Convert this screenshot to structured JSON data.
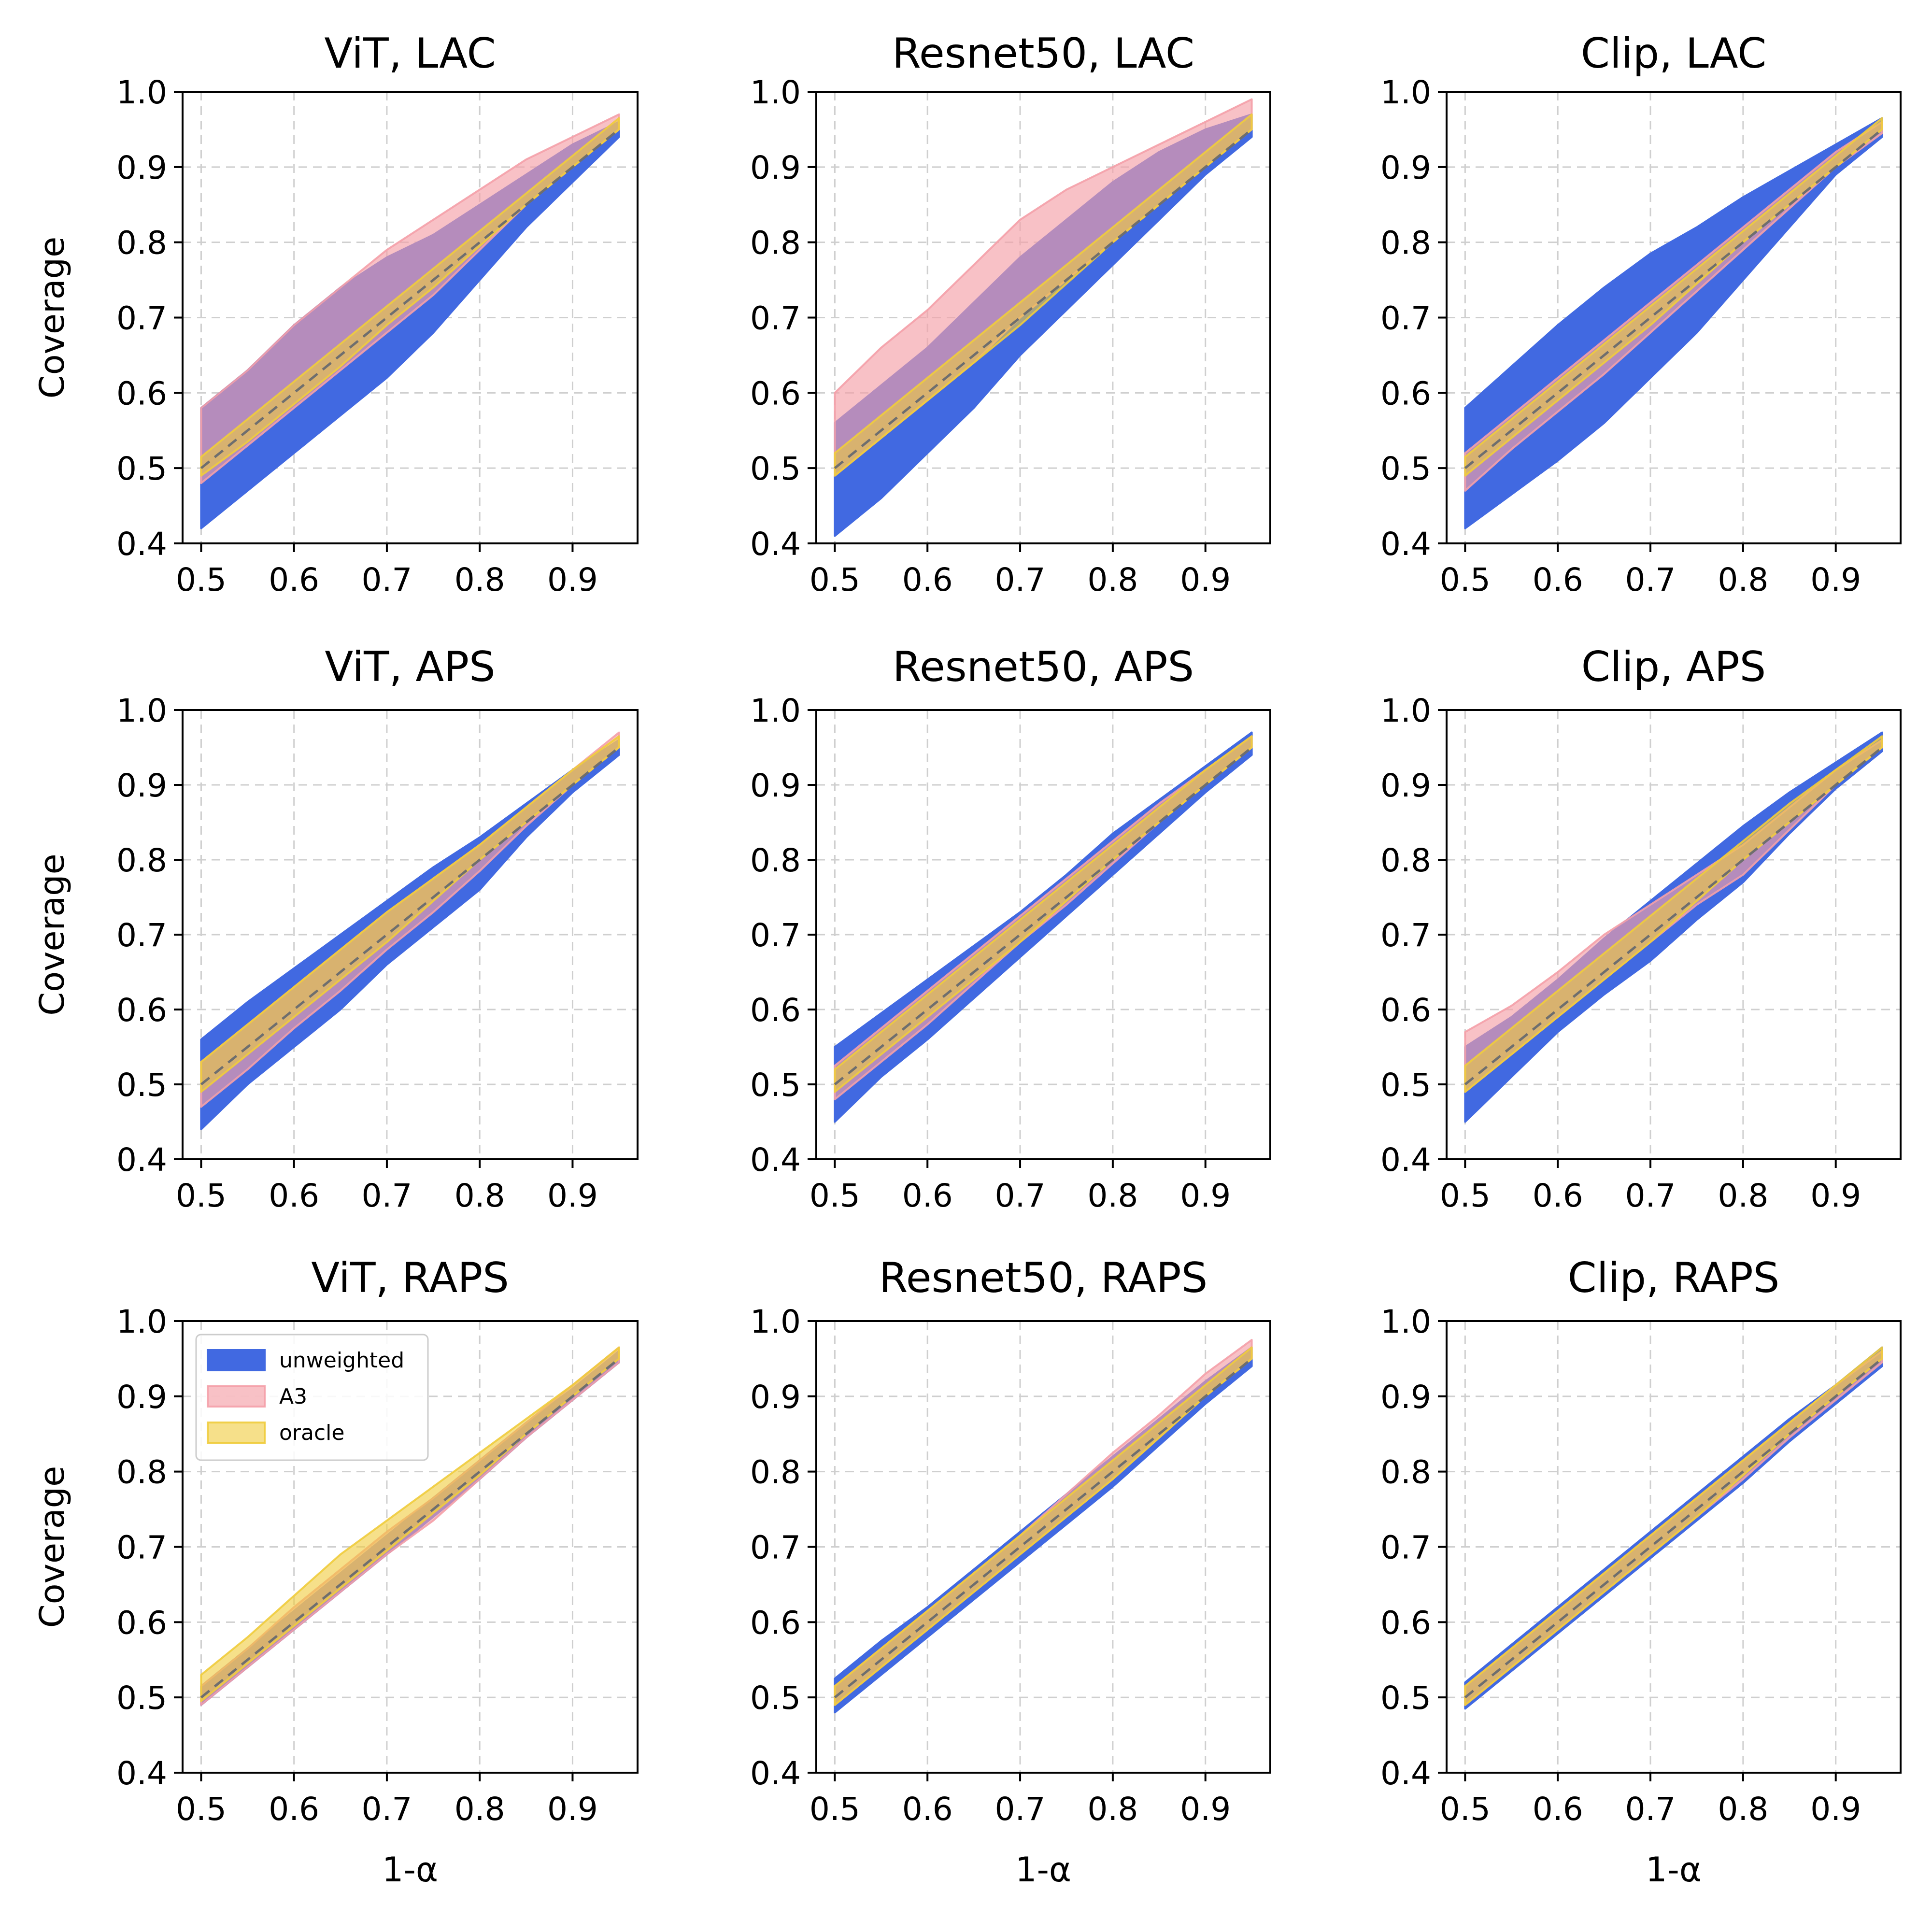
{
  "chart_data": {
    "type": "area",
    "rows": 3,
    "cols": 3,
    "xlabel": "1-α",
    "ylabel": "Coverage",
    "x": [
      0.5,
      0.55,
      0.6,
      0.65,
      0.7,
      0.75,
      0.8,
      0.85,
      0.9,
      0.95
    ],
    "xticks": [
      "0.5",
      "0.6",
      "0.7",
      "0.8",
      "0.9"
    ],
    "yticks": [
      "0.4",
      "0.5",
      "0.6",
      "0.7",
      "0.8",
      "0.9",
      "1.0"
    ],
    "xlim": [
      0.48,
      0.97
    ],
    "ylim": [
      0.4,
      1.0
    ],
    "grid": true,
    "colors": {
      "unweighted": "#4169e1",
      "A3": "#f4a0a8",
      "oracle": "#f0cc3c",
      "diagonal": "#6e6e6e"
    },
    "legend": {
      "location": "upper-left",
      "subplot": 6,
      "entries": [
        "unweighted",
        "A3",
        "oracle"
      ]
    },
    "subplots": [
      {
        "title": "ViT, LAC",
        "series": [
          {
            "name": "unweighted",
            "lower": [
              0.42,
              0.47,
              0.52,
              0.57,
              0.62,
              0.68,
              0.75,
              0.82,
              0.88,
              0.94
            ],
            "upper": [
              0.58,
              0.63,
              0.69,
              0.74,
              0.78,
              0.81,
              0.85,
              0.89,
              0.93,
              0.96
            ]
          },
          {
            "name": "A3",
            "lower": [
              0.48,
              0.53,
              0.58,
              0.63,
              0.68,
              0.73,
              0.79,
              0.85,
              0.9,
              0.95
            ],
            "upper": [
              0.58,
              0.63,
              0.69,
              0.74,
              0.79,
              0.83,
              0.87,
              0.91,
              0.94,
              0.97
            ]
          },
          {
            "name": "oracle",
            "lower": [
              0.49,
              0.535,
              0.585,
              0.635,
              0.69,
              0.74,
              0.795,
              0.85,
              0.9,
              0.95
            ],
            "upper": [
              0.515,
              0.565,
              0.615,
              0.665,
              0.715,
              0.765,
              0.815,
              0.865,
              0.915,
              0.965
            ]
          }
        ]
      },
      {
        "title": "Resnet50, LAC",
        "series": [
          {
            "name": "unweighted",
            "lower": [
              0.41,
              0.46,
              0.52,
              0.58,
              0.65,
              0.71,
              0.77,
              0.83,
              0.89,
              0.94
            ],
            "upper": [
              0.56,
              0.61,
              0.66,
              0.72,
              0.78,
              0.83,
              0.88,
              0.92,
              0.95,
              0.97
            ]
          },
          {
            "name": "A3",
            "lower": [
              0.49,
              0.54,
              0.59,
              0.64,
              0.7,
              0.75,
              0.8,
              0.85,
              0.9,
              0.95
            ],
            "upper": [
              0.6,
              0.66,
              0.71,
              0.77,
              0.83,
              0.87,
              0.9,
              0.93,
              0.96,
              0.99
            ]
          },
          {
            "name": "oracle",
            "lower": [
              0.49,
              0.54,
              0.59,
              0.64,
              0.69,
              0.745,
              0.8,
              0.85,
              0.9,
              0.95
            ],
            "upper": [
              0.52,
              0.57,
              0.62,
              0.67,
              0.72,
              0.77,
              0.82,
              0.87,
              0.92,
              0.97
            ]
          }
        ]
      },
      {
        "title": "Clip, LAC",
        "series": [
          {
            "name": "unweighted",
            "lower": [
              0.42,
              0.465,
              0.51,
              0.56,
              0.62,
              0.68,
              0.75,
              0.82,
              0.89,
              0.94
            ],
            "upper": [
              0.58,
              0.635,
              0.69,
              0.74,
              0.785,
              0.82,
              0.86,
              0.895,
              0.93,
              0.965
            ]
          },
          {
            "name": "A3",
            "lower": [
              0.47,
              0.525,
              0.575,
              0.625,
              0.68,
              0.735,
              0.79,
              0.845,
              0.9,
              0.945
            ],
            "upper": [
              0.52,
              0.57,
              0.62,
              0.67,
              0.72,
              0.77,
              0.82,
              0.87,
              0.92,
              0.96
            ]
          },
          {
            "name": "oracle",
            "lower": [
              0.49,
              0.54,
              0.59,
              0.64,
              0.69,
              0.745,
              0.8,
              0.85,
              0.9,
              0.95
            ],
            "upper": [
              0.515,
              0.565,
              0.615,
              0.665,
              0.715,
              0.765,
              0.815,
              0.865,
              0.915,
              0.965
            ]
          }
        ]
      },
      {
        "title": "ViT, APS",
        "series": [
          {
            "name": "unweighted",
            "lower": [
              0.44,
              0.5,
              0.55,
              0.6,
              0.66,
              0.71,
              0.76,
              0.83,
              0.89,
              0.94
            ],
            "upper": [
              0.56,
              0.61,
              0.655,
              0.7,
              0.745,
              0.79,
              0.83,
              0.875,
              0.92,
              0.96
            ]
          },
          {
            "name": "A3",
            "lower": [
              0.47,
              0.52,
              0.575,
              0.625,
              0.68,
              0.73,
              0.785,
              0.845,
              0.9,
              0.95
            ],
            "upper": [
              0.53,
              0.58,
              0.63,
              0.68,
              0.73,
              0.775,
              0.82,
              0.87,
              0.92,
              0.97
            ]
          },
          {
            "name": "oracle",
            "lower": [
              0.49,
              0.54,
              0.59,
              0.64,
              0.69,
              0.745,
              0.8,
              0.85,
              0.9,
              0.95
            ],
            "upper": [
              0.53,
              0.58,
              0.63,
              0.68,
              0.73,
              0.775,
              0.82,
              0.87,
              0.92,
              0.965
            ]
          }
        ]
      },
      {
        "title": "Resnet50, APS",
        "series": [
          {
            "name": "unweighted",
            "lower": [
              0.45,
              0.51,
              0.56,
              0.615,
              0.67,
              0.725,
              0.78,
              0.835,
              0.89,
              0.94
            ],
            "upper": [
              0.55,
              0.595,
              0.64,
              0.685,
              0.73,
              0.78,
              0.835,
              0.88,
              0.925,
              0.97
            ]
          },
          {
            "name": "A3",
            "lower": [
              0.48,
              0.53,
              0.58,
              0.635,
              0.69,
              0.74,
              0.795,
              0.85,
              0.9,
              0.95
            ],
            "upper": [
              0.525,
              0.575,
              0.625,
              0.675,
              0.725,
              0.775,
              0.825,
              0.875,
              0.92,
              0.965
            ]
          },
          {
            "name": "oracle",
            "lower": [
              0.49,
              0.54,
              0.59,
              0.64,
              0.69,
              0.745,
              0.8,
              0.85,
              0.9,
              0.95
            ],
            "upper": [
              0.52,
              0.57,
              0.62,
              0.67,
              0.72,
              0.77,
              0.82,
              0.87,
              0.92,
              0.965
            ]
          }
        ]
      },
      {
        "title": "Clip, APS",
        "series": [
          {
            "name": "unweighted",
            "lower": [
              0.45,
              0.51,
              0.57,
              0.62,
              0.665,
              0.72,
              0.77,
              0.835,
              0.895,
              0.945
            ],
            "upper": [
              0.55,
              0.59,
              0.64,
              0.695,
              0.745,
              0.795,
              0.845,
              0.89,
              0.93,
              0.97
            ]
          },
          {
            "name": "A3",
            "lower": [
              0.49,
              0.54,
              0.59,
              0.64,
              0.69,
              0.74,
              0.78,
              0.84,
              0.9,
              0.95
            ],
            "upper": [
              0.57,
              0.605,
              0.65,
              0.7,
              0.74,
              0.78,
              0.82,
              0.87,
              0.92,
              0.96
            ]
          },
          {
            "name": "oracle",
            "lower": [
              0.49,
              0.54,
              0.59,
              0.64,
              0.69,
              0.745,
              0.8,
              0.85,
              0.9,
              0.95
            ],
            "upper": [
              0.525,
              0.575,
              0.625,
              0.675,
              0.725,
              0.775,
              0.825,
              0.875,
              0.92,
              0.965
            ]
          }
        ]
      },
      {
        "title": "ViT, RAPS",
        "series": [
          {
            "name": "unweighted",
            "lower": [
              0.49,
              0.54,
              0.59,
              0.64,
              0.69,
              0.74,
              0.79,
              0.845,
              0.895,
              0.945
            ],
            "upper": [
              0.515,
              0.565,
              0.615,
              0.665,
              0.715,
              0.765,
              0.815,
              0.865,
              0.91,
              0.96
            ]
          },
          {
            "name": "A3",
            "lower": [
              0.49,
              0.54,
              0.59,
              0.64,
              0.69,
              0.735,
              0.79,
              0.845,
              0.895,
              0.945
            ],
            "upper": [
              0.515,
              0.565,
              0.62,
              0.67,
              0.72,
              0.765,
              0.815,
              0.865,
              0.915,
              0.965
            ]
          },
          {
            "name": "oracle",
            "lower": [
              0.495,
              0.545,
              0.595,
              0.645,
              0.695,
              0.745,
              0.795,
              0.85,
              0.9,
              0.95
            ],
            "upper": [
              0.53,
              0.58,
              0.635,
              0.69,
              0.735,
              0.78,
              0.825,
              0.87,
              0.915,
              0.965
            ]
          }
        ]
      },
      {
        "title": "Resnet50, RAPS",
        "series": [
          {
            "name": "unweighted",
            "lower": [
              0.48,
              0.53,
              0.58,
              0.63,
              0.68,
              0.73,
              0.78,
              0.835,
              0.89,
              0.94
            ],
            "upper": [
              0.525,
              0.575,
              0.62,
              0.67,
              0.72,
              0.77,
              0.82,
              0.87,
              0.92,
              0.965
            ]
          },
          {
            "name": "A3",
            "lower": [
              0.49,
              0.54,
              0.59,
              0.64,
              0.69,
              0.74,
              0.79,
              0.845,
              0.9,
              0.95
            ],
            "upper": [
              0.515,
              0.565,
              0.615,
              0.665,
              0.715,
              0.77,
              0.825,
              0.875,
              0.93,
              0.975
            ]
          },
          {
            "name": "oracle",
            "lower": [
              0.49,
              0.54,
              0.59,
              0.64,
              0.69,
              0.74,
              0.79,
              0.845,
              0.9,
              0.95
            ],
            "upper": [
              0.515,
              0.565,
              0.615,
              0.665,
              0.715,
              0.765,
              0.815,
              0.865,
              0.915,
              0.965
            ]
          }
        ]
      },
      {
        "title": "Clip, RAPS",
        "series": [
          {
            "name": "unweighted",
            "lower": [
              0.485,
              0.535,
              0.585,
              0.635,
              0.685,
              0.735,
              0.785,
              0.84,
              0.89,
              0.94
            ],
            "upper": [
              0.52,
              0.57,
              0.62,
              0.67,
              0.72,
              0.77,
              0.82,
              0.87,
              0.915,
              0.965
            ]
          },
          {
            "name": "A3",
            "lower": [
              0.49,
              0.54,
              0.59,
              0.64,
              0.69,
              0.74,
              0.79,
              0.845,
              0.895,
              0.945
            ],
            "upper": [
              0.515,
              0.565,
              0.615,
              0.665,
              0.715,
              0.765,
              0.815,
              0.865,
              0.915,
              0.96
            ]
          },
          {
            "name": "oracle",
            "lower": [
              0.49,
              0.54,
              0.59,
              0.64,
              0.69,
              0.74,
              0.795,
              0.85,
              0.9,
              0.95
            ],
            "upper": [
              0.515,
              0.565,
              0.615,
              0.665,
              0.715,
              0.765,
              0.815,
              0.865,
              0.915,
              0.965
            ]
          }
        ]
      }
    ]
  }
}
